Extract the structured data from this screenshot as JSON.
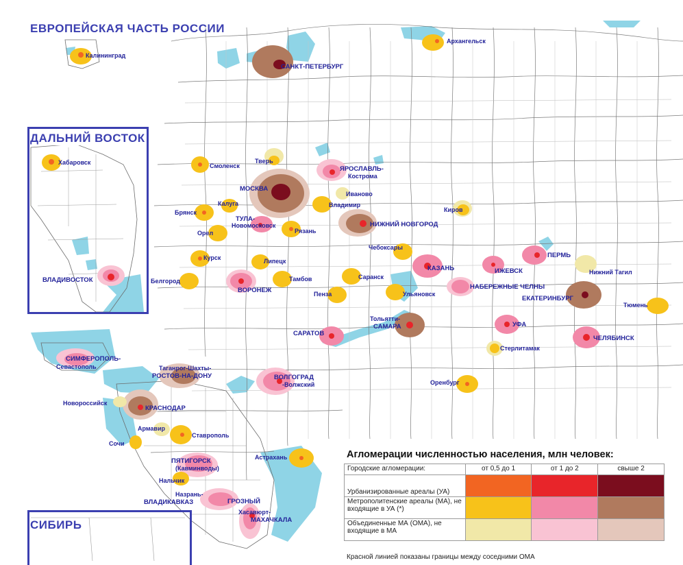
{
  "titles": {
    "european_russia": "ЕВРОПЕЙСКАЯ ЧАСТЬ РОССИИ",
    "far_east": "ДАЛЬНИЙ ВОСТОК",
    "siberia": "СИБИРЬ"
  },
  "colors": {
    "water": "#8fd4e6",
    "border": "#6b6b6b",
    "inset_frame": "#3b3fb0",
    "label_text": "#23239a",
    "ua_0_5_1": "#f26522",
    "ua_1_2": "#e8252a",
    "ua_2_plus": "#7b0d1e",
    "ma_0_5_1": "#f7c21a",
    "ma_1_2": "#f288a8",
    "ma_2_plus": "#b07a5e",
    "oma_0_5_1": "#f1e8a8",
    "oma_1_2": "#f9c3d3",
    "oma_2_plus": "#e4c7bb"
  },
  "cities": {
    "kaliningrad": "Калининград",
    "arkhangelsk": "Архангельск",
    "spb": "САНКТ-ПЕТЕРБУРГ",
    "khabarovsk": "Хабаровск",
    "vladivostok": "ВЛАДИВОСТОК",
    "smolensk": "Смоленск",
    "tver": "Тверь",
    "yaroslavl": "ЯРОСЛАВЛЬ-",
    "kostroma": "Кострома",
    "moscow": "МОСКВА",
    "ivanovo": "Иваново",
    "kaluga": "Калуга",
    "vladimir": "Владимир",
    "bryansk": "Брянск",
    "tula": "ТУЛА-",
    "novomoskovsk": "Новомосковск",
    "nizhny": "НИЖНИЙ НОВГОРОД",
    "kirov": "Киров",
    "ryazan": "Рязань",
    "orel": "Орел",
    "cheboksary": "Чебоксары",
    "perm": "ПЕРМЬ",
    "kursk": "Курск",
    "lipetsk": "Липецк",
    "kazan": "КАЗАНЬ",
    "izhevsk": "ИЖЕВСК",
    "nizhny_tagil": "Нижний Тагил",
    "belgorod": "Белгород",
    "tambov": "Тамбов",
    "saransk": "Саранск",
    "naberezhnye": "НАБЕРЕЖНЫЕ ЧЕЛНЫ",
    "voronezh": "ВОРОНЕЖ",
    "penza": "Пенза",
    "ulyanovsk": "Ульяновск",
    "ekaterinburg": "ЕКАТЕРИНБУРГ",
    "tyumen": "Тюмень",
    "togliatti": "Тольятти-",
    "samara": "САМАРА",
    "saratov": "САРАТОВ",
    "ufa": "УФА",
    "chelyabinsk": "ЧЕЛЯБИНСК",
    "sterlitamak": "Стерлитамак",
    "simferopol": "СИМФЕРОПОЛЬ-",
    "sevastopol": "Севастополь",
    "taganrog": "Таганрог-Шахты-",
    "rostov": "РОСТОВ-НА-ДОНУ",
    "volgograd": "ВОЛГОГРАД",
    "volzhsky": "-Волжский",
    "orenburg": "Оренбург",
    "novorossiysk": "Новороссийск",
    "krasnodar": "КРАСНОДАР",
    "armavir": "Армавир",
    "stavropol": "Ставрополь",
    "sochi": "Сочи",
    "astrakhan": "Астрахань",
    "pyatigorsk": "ПЯТИГОРСК",
    "kavminvody": "(Кавминводы)",
    "nalchik": "Нальчик",
    "nazran": "Назрань-",
    "vladikavkaz": "ВЛАДИКАВКАЗ",
    "grozny": "ГРОЗНЫЙ",
    "khasavyurt": "Хасавюрт-",
    "makhachkala": "МАХАЧКАЛА"
  },
  "legend": {
    "title": "Агломерации численностью населения, млн  человек:",
    "header_label": "Городские агломерации:",
    "columns": [
      "от 0,5 до 1",
      "от 1 до 2",
      "свыше 2"
    ],
    "rows": [
      {
        "label": "Урбанизированные ареалы (УА)"
      },
      {
        "label": "Метрополитенские ареалы (МА), не входящие в УА (*)"
      },
      {
        "label": "Объединенные МА (ОМА), не входящие в МА"
      }
    ],
    "note": "Красной линией показаны границы между соседними ОМА"
  }
}
